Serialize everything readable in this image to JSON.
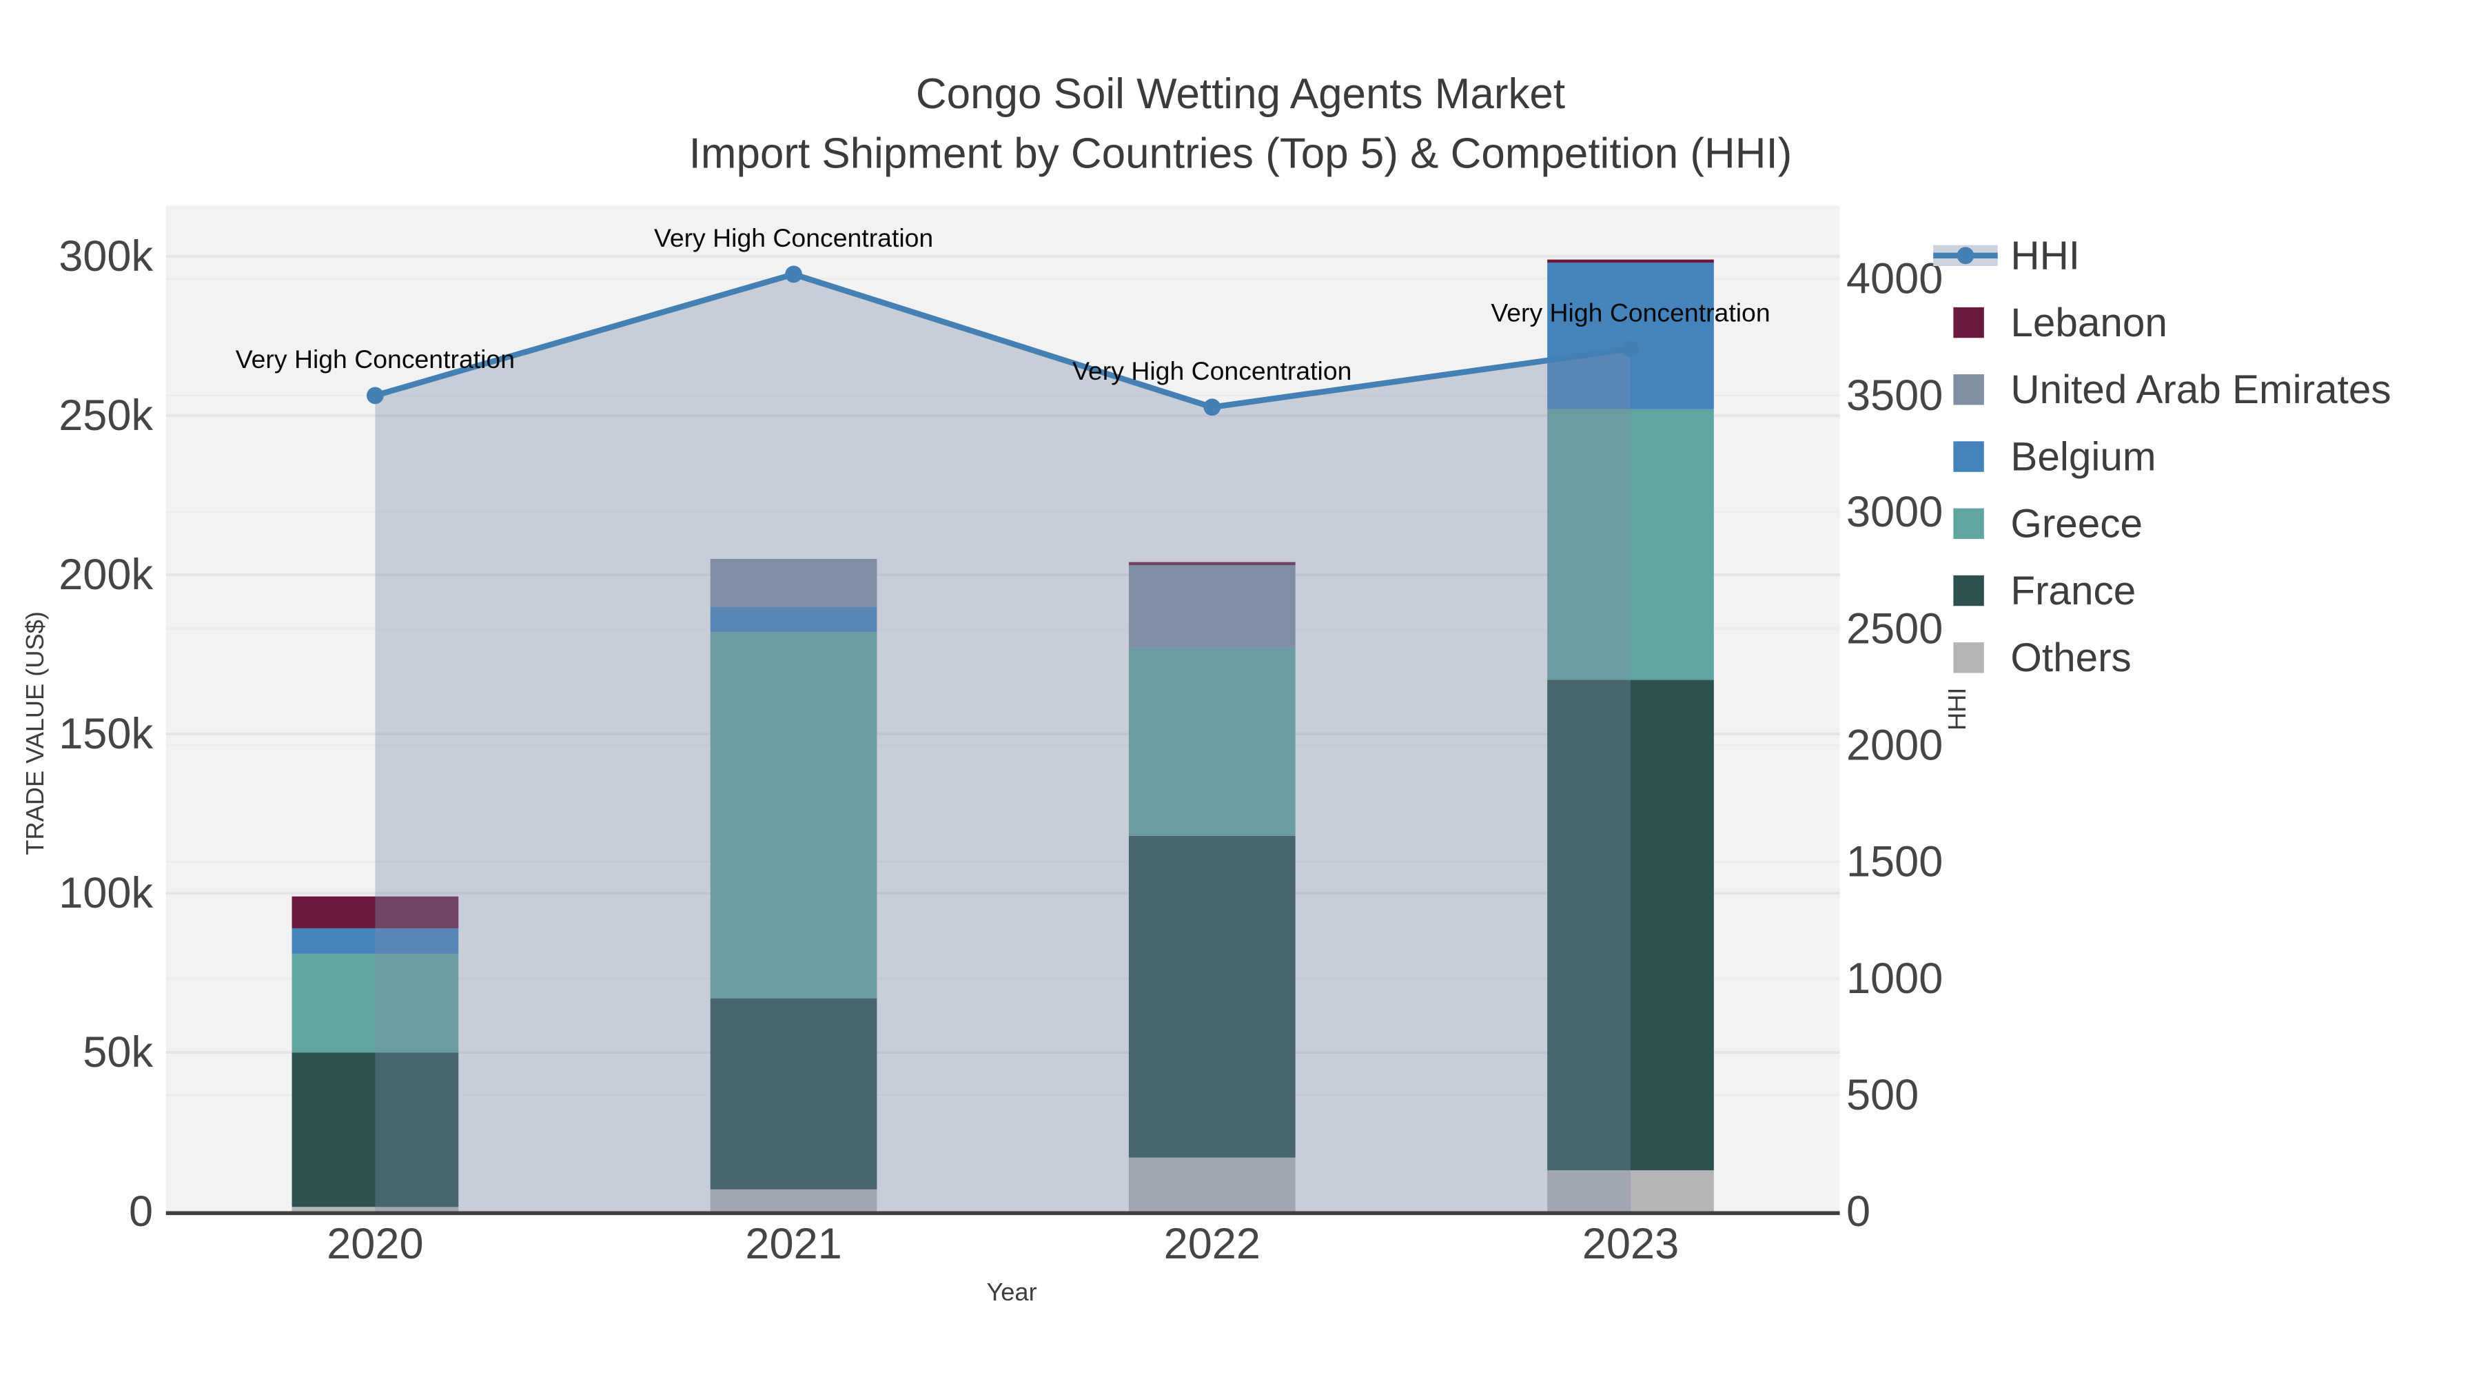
{
  "title": {
    "line1": "Congo Soil Wetting Agents Market",
    "line2": "Import Shipment by Countries (Top 5) & Competition (HHI)"
  },
  "axes": {
    "x_title": "Year",
    "y_left_title": "TRADE VALUE (US$)",
    "y_right_title": "HHI",
    "y_left_ticks": [
      {
        "value": 0,
        "label": "0"
      },
      {
        "value": 50000,
        "label": "50k"
      },
      {
        "value": 100000,
        "label": "100k"
      },
      {
        "value": 150000,
        "label": "150k"
      },
      {
        "value": 200000,
        "label": "200k"
      },
      {
        "value": 250000,
        "label": "250k"
      },
      {
        "value": 300000,
        "label": "300k"
      }
    ],
    "y_right_ticks": [
      {
        "value": 0,
        "label": "0"
      },
      {
        "value": 500,
        "label": "500"
      },
      {
        "value": 1000,
        "label": "1000"
      },
      {
        "value": 1500,
        "label": "1500"
      },
      {
        "value": 2000,
        "label": "2000"
      },
      {
        "value": 2500,
        "label": "2500"
      },
      {
        "value": 3000,
        "label": "3000"
      },
      {
        "value": 3500,
        "label": "3500"
      },
      {
        "value": 4000,
        "label": "4000"
      }
    ]
  },
  "chart_data": {
    "type": "bar",
    "stacked": true,
    "categories": [
      "2020",
      "2021",
      "2022",
      "2023"
    ],
    "series": [
      {
        "name": "Others",
        "color": "#b5b5b8",
        "values": [
          1500,
          7000,
          17000,
          13000
        ]
      },
      {
        "name": "France",
        "color": "#2c514f",
        "values": [
          48500,
          60000,
          101000,
          154000
        ]
      },
      {
        "name": "Greece",
        "color": "#61a5a2",
        "values": [
          31000,
          115000,
          59000,
          85000
        ]
      },
      {
        "name": "Belgium",
        "color": "#4583bc",
        "values": [
          8000,
          8000,
          0,
          46000
        ]
      },
      {
        "name": "United Arab Emirates",
        "color": "#8090a2",
        "values": [
          0,
          15000,
          26000,
          0
        ]
      },
      {
        "name": "Lebanon",
        "color": "#6b1a3d",
        "values": [
          10000,
          0,
          1000,
          1000
        ]
      }
    ],
    "line_series": {
      "name": "HHI",
      "axis": "right",
      "color": "#4480b4",
      "fill_color": "rgba(125,140,168,0.36)",
      "values": [
        3500,
        4020,
        3450,
        3700
      ]
    },
    "annotations": [
      {
        "category": "2020",
        "text": "Very High Concentration"
      },
      {
        "category": "2021",
        "text": "Very High Concentration"
      },
      {
        "category": "2022",
        "text": "Very High Concentration"
      },
      {
        "category": "2023",
        "text": "Very High Concentration"
      }
    ],
    "ylim_left": [
      0,
      316000
    ],
    "ylim_right": [
      0,
      4320
    ],
    "grid": true,
    "legend_position": "right",
    "xlabel": "Year",
    "ylabel": "TRADE VALUE (US$)",
    "ylabel_right": "HHI",
    "title": "Congo Soil Wetting Agents Market Import Shipment by Countries (Top 5) & Competition (HHI)"
  },
  "legend": {
    "items": [
      {
        "label": "HHI",
        "type": "line",
        "color": "#4480b4",
        "underlay": "#cdd3de"
      },
      {
        "label": "Lebanon",
        "type": "square",
        "color": "#6b1a3d"
      },
      {
        "label": "United Arab Emirates",
        "type": "square",
        "color": "#8090a2"
      },
      {
        "label": "Belgium",
        "type": "square",
        "color": "#4583bc"
      },
      {
        "label": "Greece",
        "type": "square",
        "color": "#61a5a2"
      },
      {
        "label": "France",
        "type": "square",
        "color": "#2c514f"
      },
      {
        "label": "Others",
        "type": "square",
        "color": "#b5b5b8"
      }
    ]
  },
  "style": {
    "plot_bg": "#f2f2f3",
    "grid_color_left": "#e4e5e7",
    "grid_color_right": "#ebeced",
    "axis_line_color": "#3f3f3f",
    "tick_color": "#454545",
    "annotation_color": "#0a0a0a",
    "legend_text_color": "#3d3d3d"
  }
}
